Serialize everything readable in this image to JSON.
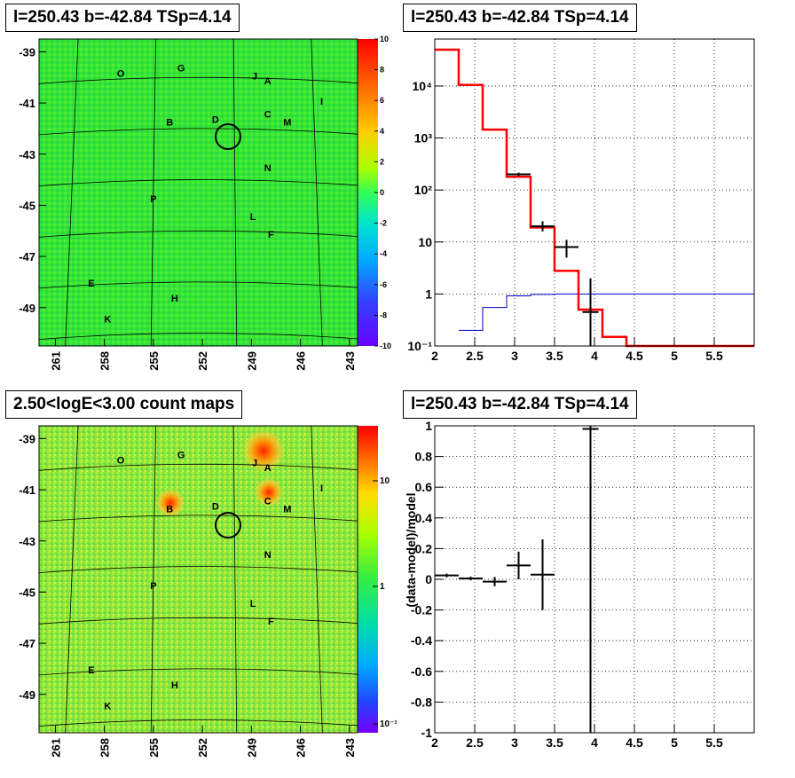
{
  "panels": {
    "tl_title": "l=250.43 b=-42.84 TSp=4.14",
    "tr_title": "l=250.43 b=-42.84 TSp=4.14",
    "bl_title": "2.50<logE<3.00 count maps",
    "br_title": "l=250.43 b=-42.84 TSp=4.14"
  },
  "colors": {
    "model": "#ff0000",
    "background_model": "#0000cc",
    "data": "#000000"
  },
  "source_labels": [
    {
      "name": "O",
      "l": 257.0,
      "b": -39.8
    },
    {
      "name": "G",
      "l": 253.3,
      "b": -39.6
    },
    {
      "name": "J",
      "l": 248.8,
      "b": -39.9
    },
    {
      "name": "A",
      "l": 248.0,
      "b": -40.1
    },
    {
      "name": "I",
      "l": 244.7,
      "b": -40.9
    },
    {
      "name": "B",
      "l": 254.0,
      "b": -41.7
    },
    {
      "name": "D",
      "l": 251.2,
      "b": -41.6
    },
    {
      "name": "C",
      "l": 248.0,
      "b": -41.4
    },
    {
      "name": "M",
      "l": 246.8,
      "b": -41.7
    },
    {
      "name": "N",
      "l": 248.0,
      "b": -43.5
    },
    {
      "name": "P",
      "l": 255.0,
      "b": -44.7
    },
    {
      "name": "L",
      "l": 248.9,
      "b": -45.4
    },
    {
      "name": "F",
      "l": 247.8,
      "b": -46.1
    },
    {
      "name": "E",
      "l": 258.8,
      "b": -48.0
    },
    {
      "name": "H",
      "l": 253.7,
      "b": -48.6
    },
    {
      "name": "K",
      "l": 257.8,
      "b": -49.4
    }
  ],
  "chart_data": [
    {
      "type": "heatmap",
      "title": "l=250.43 b=-42.84 TSp=4.14",
      "x_ticks": [
        "261",
        "258",
        "255",
        "252",
        "249",
        "246",
        "243"
      ],
      "y_ticks": [
        "-39",
        "-41",
        "-43",
        "-45",
        "-47",
        "-49"
      ],
      "xlim": [
        262,
        242.5
      ],
      "ylim": [
        -50.5,
        -38.5
      ],
      "colorbar": {
        "min": -10,
        "max": 10,
        "ticks": [
          "10",
          "8",
          "6",
          "4",
          "2",
          "0",
          "-2",
          "-4",
          "-6",
          "-8",
          "-10"
        ]
      },
      "roi_circle": {
        "l": 250.43,
        "b": -42.84,
        "radius_deg": 0.5
      }
    },
    {
      "type": "line",
      "title": "l=250.43 b=-42.84 TSp=4.14",
      "x_ticks": [
        "2",
        "2.5",
        "3",
        "3.5",
        "4",
        "4.5",
        "5",
        "5.5"
      ],
      "y_ticks": [
        "10⁴",
        "10³",
        "10²",
        "10",
        "1",
        "10⁻¹"
      ],
      "xlim": [
        2.0,
        6.0
      ],
      "ylim": [
        0.1,
        80000
      ],
      "yscale": "log",
      "series": [
        {
          "style": "step",
          "bins": [
            [
              2.0,
              2.3,
              50000
            ],
            [
              2.3,
              2.6,
              10500
            ],
            [
              2.6,
              2.9,
              1450
            ],
            [
              2.9,
              3.2,
              180
            ],
            [
              3.2,
              3.5,
              19
            ],
            [
              3.5,
              3.8,
              2.8
            ],
            [
              3.8,
              4.1,
              0.5
            ],
            [
              4.1,
              4.4,
              0.15
            ],
            [
              4.4,
              6.0,
              0.1
            ]
          ]
        },
        {
          "style": "step",
          "bins": [
            [
              2.3,
              2.6,
              0.2
            ],
            [
              2.6,
              2.9,
              0.55
            ],
            [
              2.9,
              3.2,
              0.92
            ],
            [
              3.2,
              3.5,
              0.98
            ],
            [
              3.5,
              6.0,
              1.0
            ]
          ]
        },
        {
          "style": "errorbars",
          "points": [
            {
              "x": 3.05,
              "y": 200,
              "xerr": 0.15,
              "ylo": 185,
              "yhi": 215
            },
            {
              "x": 3.35,
              "y": 20,
              "xerr": 0.15,
              "ylo": 16,
              "yhi": 25
            },
            {
              "x": 3.65,
              "y": 8,
              "xerr": 0.15,
              "ylo": 5,
              "yhi": 11
            },
            {
              "x": 3.95,
              "y": 0.45,
              "xerr": 0.1,
              "ylo": 0.1,
              "yhi": 2
            }
          ]
        }
      ]
    },
    {
      "type": "heatmap",
      "title": "2.50<logE<3.00 count maps",
      "x_ticks": [
        "261",
        "258",
        "255",
        "252",
        "249",
        "246",
        "243"
      ],
      "y_ticks": [
        "-39",
        "-41",
        "-43",
        "-45",
        "-47",
        "-49"
      ],
      "xlim": [
        262,
        242.5
      ],
      "ylim": [
        -50.5,
        -38.5
      ],
      "colorbar": {
        "scale": "log",
        "ticks": [
          "10",
          "1",
          "10⁻¹"
        ]
      },
      "bright_sources": [
        "A",
        "C",
        "B"
      ]
    },
    {
      "type": "scatter",
      "title": "l=250.43 b=-42.84 TSp=4.14",
      "ylabel": "(data-model)/model",
      "x_ticks": [
        "2",
        "2.5",
        "3",
        "3.5",
        "4",
        "4.5",
        "5",
        "5.5"
      ],
      "y_ticks": [
        "1",
        "0.8",
        "0.6",
        "0.4",
        "0.2",
        "0",
        "-0.2",
        "-0.4",
        "-0.6",
        "-0.8",
        "-1"
      ],
      "xlim": [
        2.0,
        6.0
      ],
      "ylim": [
        -1.0,
        1.0
      ],
      "points": [
        {
          "x": 2.15,
          "y": 0.025,
          "xerr": 0.15,
          "yerr": 0.012
        },
        {
          "x": 2.45,
          "y": 0.005,
          "xerr": 0.15,
          "yerr": 0.012
        },
        {
          "x": 2.75,
          "y": -0.015,
          "xerr": 0.15,
          "yerr": 0.03
        },
        {
          "x": 3.05,
          "y": 0.09,
          "xerr": 0.15,
          "yerr": 0.09
        },
        {
          "x": 3.35,
          "y": 0.03,
          "xerr": 0.15,
          "yerr": 0.23
        },
        {
          "x": 3.95,
          "y": 0.98,
          "xerr": 0.1,
          "yerr": 2.0
        }
      ]
    }
  ]
}
